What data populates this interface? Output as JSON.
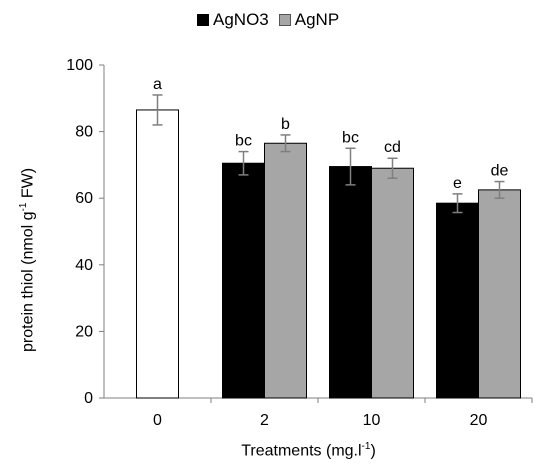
{
  "chart_data": {
    "type": "bar",
    "categories": [
      "0",
      "2",
      "10",
      "20"
    ],
    "series": [
      {
        "name": "AgNO3",
        "color": "#000000",
        "values": [
          86.5,
          70.5,
          69.5,
          58.5
        ],
        "errors": [
          4.5,
          3.5,
          5.5,
          2.8
        ],
        "letters": [
          "a",
          "bc",
          "bc",
          "e"
        ]
      },
      {
        "name": "AgNP",
        "color": "#a6a6a6",
        "values": [
          null,
          76.5,
          69,
          62.5
        ],
        "errors": [
          null,
          2.5,
          3,
          2.5
        ],
        "letters": [
          null,
          "b",
          "cd",
          "de"
        ]
      }
    ],
    "control_color": "#ffffff",
    "xlabel_main": "Treatments (mg.l",
    "xlabel_sup": "-1",
    "xlabel_end": ")",
    "ylabel_main": "protein thiol (nmol g",
    "ylabel_sup": "-1",
    "ylabel_end": " FW)",
    "ylim": [
      0,
      100
    ],
    "yticks": [
      "0",
      "20",
      "40",
      "60",
      "80",
      "100"
    ],
    "legend_position": "top-center"
  }
}
